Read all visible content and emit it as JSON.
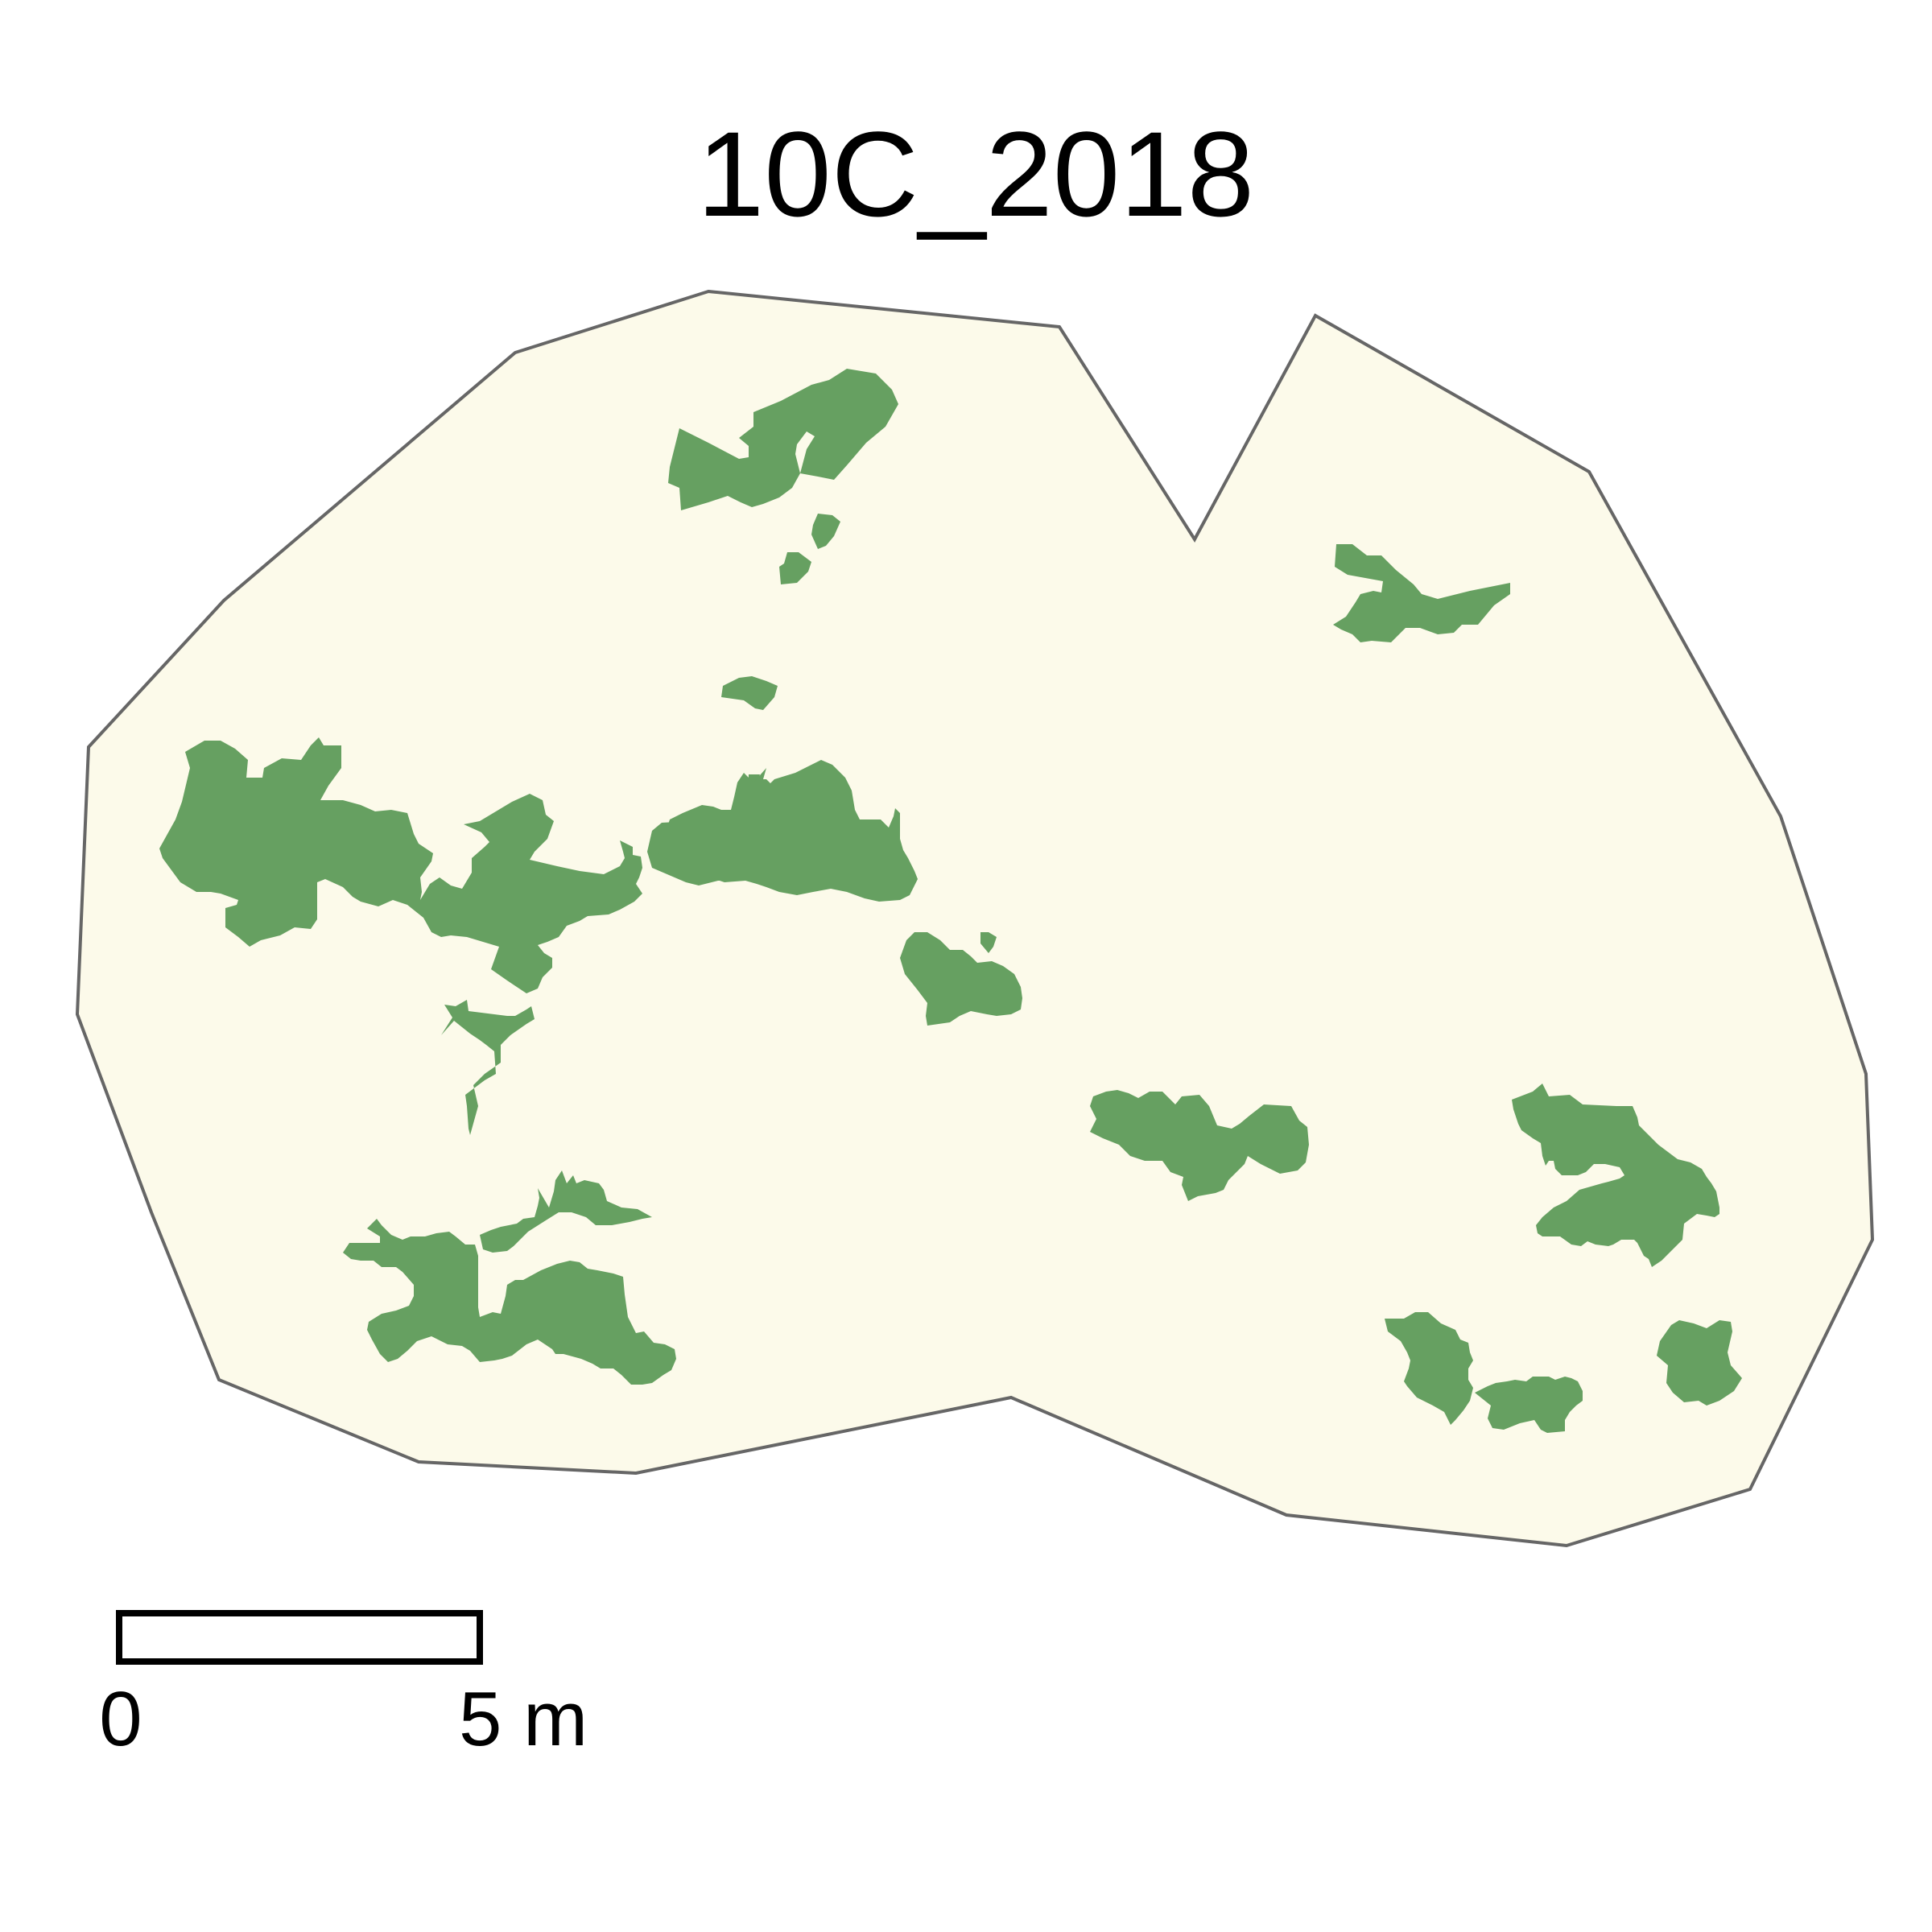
{
  "map": {
    "title": "10C_2018",
    "colors": {
      "background": "#ffffff",
      "boundary_fill": "#fcfaea",
      "boundary_stroke": "#666666",
      "patch_fill": "#66a061"
    },
    "scale_bar": {
      "zero_label": "0",
      "end_label": "5 m"
    }
  }
}
